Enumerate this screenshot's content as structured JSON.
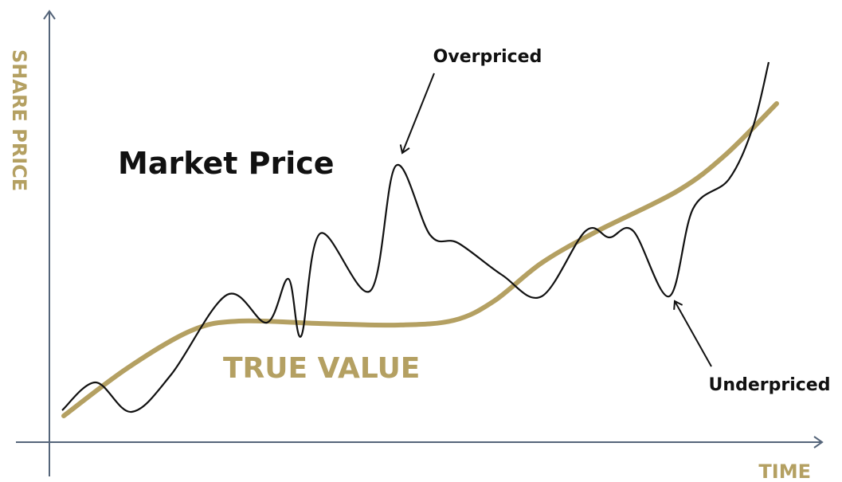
{
  "axes": {
    "y_label": "SHARE PRICE",
    "x_label": "TIME"
  },
  "labels": {
    "market_price": "Market Price",
    "true_value": "TRUE VALUE",
    "overpriced": "Overpriced",
    "underpriced": "Underpriced"
  }
}
